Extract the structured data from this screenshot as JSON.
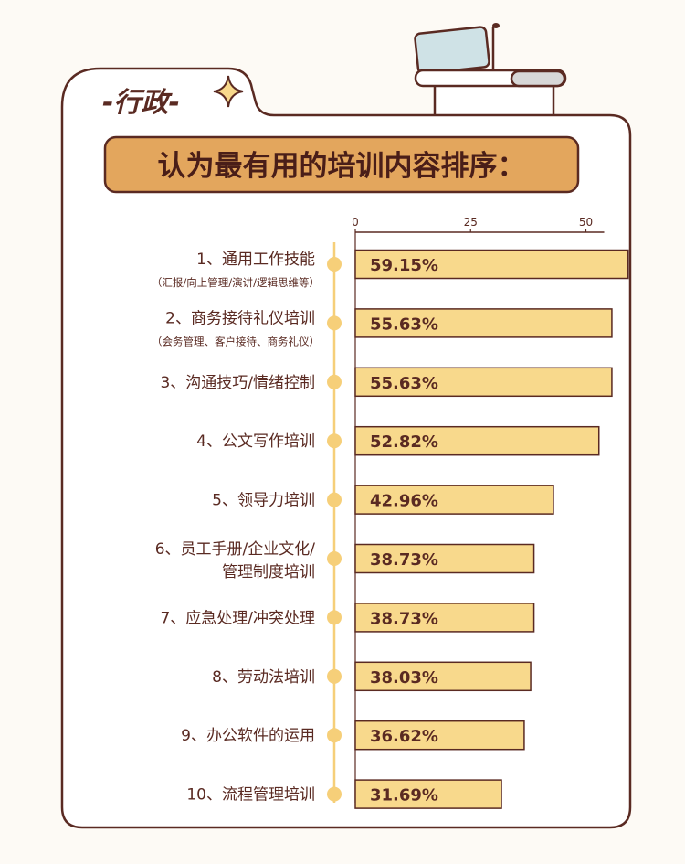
{
  "section_tag": "-行政-",
  "title": "认为最有用的培训内容排序：",
  "colors": {
    "background": "#fdfaf5",
    "panel": "#ffffff",
    "outline": "#5a2a22",
    "title_fill": "#e3a65d",
    "bar_fill": "#f8d98c",
    "dot": "#f6cf79",
    "track": "#f6cf79",
    "text": "#5a2a22"
  },
  "chart_data": {
    "type": "bar",
    "orientation": "horizontal",
    "x_ticks": [
      0,
      25,
      50
    ],
    "xlim": [
      0,
      50
    ],
    "grid": false,
    "categories": [
      {
        "lines": [
          "1、通用工作技能"
        ],
        "sub": "（汇报/向上管理/演讲/逻辑思维等）"
      },
      {
        "lines": [
          "2、商务接待礼仪培训"
        ],
        "sub": "（会务管理、客户接待、商务礼仪）"
      },
      {
        "lines": [
          "3、沟通技巧/情绪控制"
        ],
        "sub": ""
      },
      {
        "lines": [
          "4、公文写作培训"
        ],
        "sub": ""
      },
      {
        "lines": [
          "5、领导力培训"
        ],
        "sub": ""
      },
      {
        "lines": [
          "6、员工手册/企业文化/",
          "管理制度培训"
        ],
        "sub": ""
      },
      {
        "lines": [
          "7、应急处理/冲突处理"
        ],
        "sub": ""
      },
      {
        "lines": [
          "8、劳动法培训"
        ],
        "sub": ""
      },
      {
        "lines": [
          "9、办公软件的运用"
        ],
        "sub": ""
      },
      {
        "lines": [
          "10、流程管理培训"
        ],
        "sub": ""
      }
    ],
    "values": [
      59.15,
      55.63,
      55.63,
      52.82,
      42.96,
      38.73,
      38.73,
      38.03,
      36.62,
      31.69
    ],
    "value_labels": [
      "59.15%",
      "55.63%",
      "55.63%",
      "52.82%",
      "42.96%",
      "38.73%",
      "38.73%",
      "38.03%",
      "36.62%",
      "31.69%"
    ]
  }
}
